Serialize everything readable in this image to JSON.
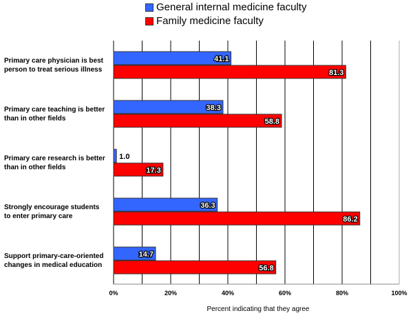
{
  "chart_data": {
    "type": "bar",
    "orientation": "horizontal",
    "categories": [
      "Primary care physician is best person to treat serious illness",
      "Primary care teaching is better than in other fields",
      "Primary care research is better than in other fields",
      "Strongly encourage students to enter primary care",
      "Support primary-care-oriented changes in medical education"
    ],
    "category_lines": [
      [
        "Primary care physician is best",
        "person to treat serious illness"
      ],
      [
        "Primary care teaching is better",
        "than in other fields"
      ],
      [
        "Primary care research is better",
        "than in other fields"
      ],
      [
        "Strongly encourage students",
        "to enter primary care"
      ],
      [
        "Support primary-care-oriented",
        "changes in medical education"
      ]
    ],
    "series": [
      {
        "name": "General internal medicine faculty",
        "color": "#3366ff",
        "values": [
          41.1,
          38.3,
          1.0,
          36.3,
          14.7
        ],
        "labels": [
          "41.1",
          "38.3",
          "1.0",
          "36.3",
          "14.7"
        ]
      },
      {
        "name": "Family medicine faculty",
        "color": "#ff0000",
        "values": [
          81.3,
          58.8,
          17.3,
          86.2,
          56.8
        ],
        "labels": [
          "81.3",
          "58.8",
          "17.3",
          "86.2",
          "56.8"
        ]
      }
    ],
    "xlabel": "Percent indicating that they agree",
    "xlim": [
      0,
      100
    ],
    "xticks": [
      "0%",
      "20%",
      "40%",
      "60%",
      "80%",
      "100%"
    ],
    "grid": true,
    "legend_position": "top"
  }
}
